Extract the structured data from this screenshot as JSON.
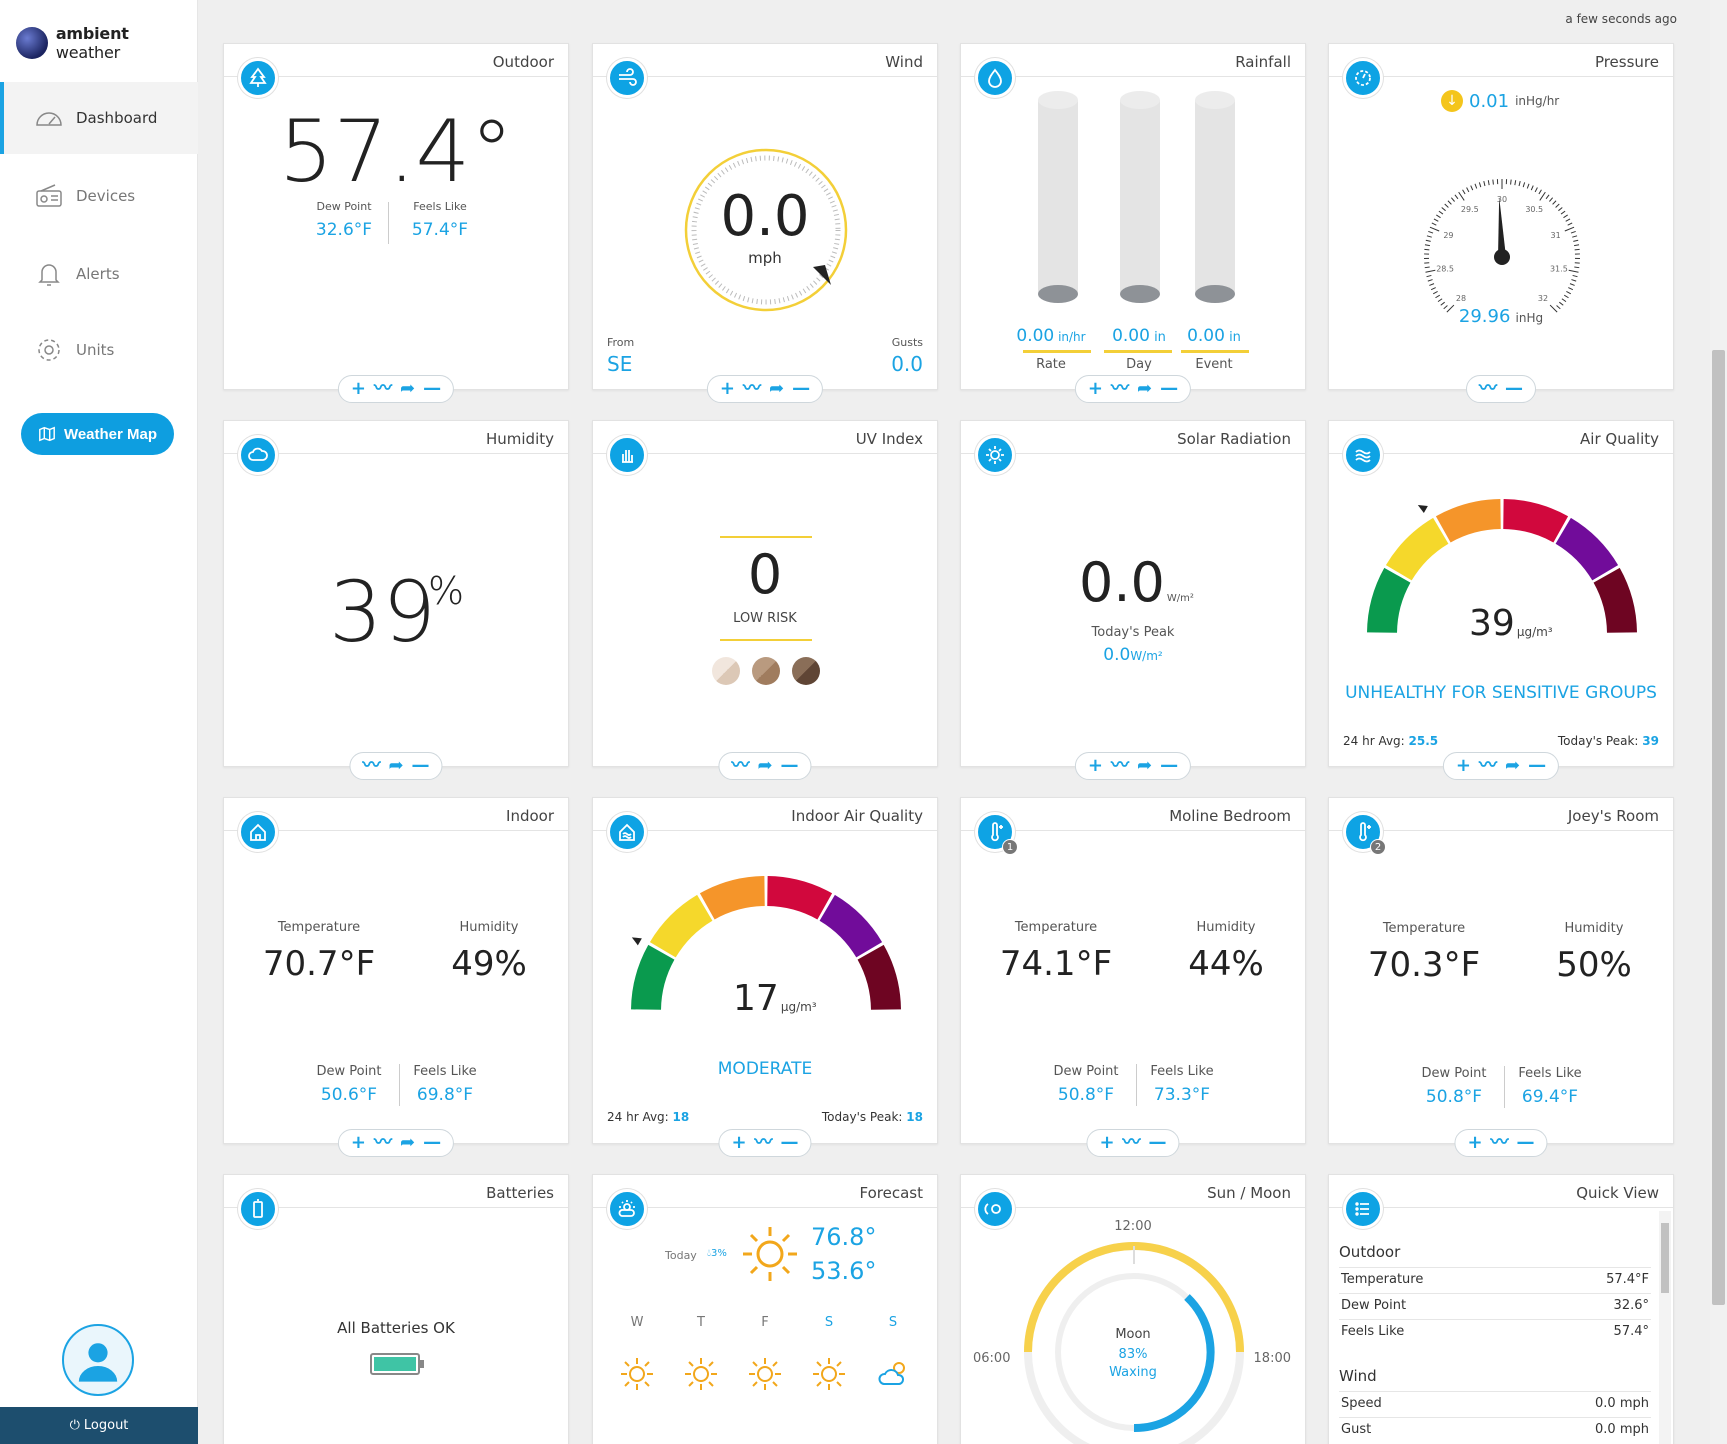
{
  "brand": {
    "name_bold": "ambient",
    "name_light": " weather"
  },
  "updated": "a few seconds ago",
  "nav": {
    "dashboard": "Dashboard",
    "devices": "Devices",
    "alerts": "Alerts",
    "units": "Units",
    "weather_map": "Weather Map",
    "logout": "Logout"
  },
  "outdoor": {
    "title": "Outdoor",
    "temp": "57.4°",
    "dew_label": "Dew Point",
    "dew": "32.6°F",
    "feels_label": "Feels Like",
    "feels": "57.4°F"
  },
  "wind": {
    "title": "Wind",
    "speed": "0.0",
    "unit": "mph",
    "from_label": "From",
    "from": "SE",
    "gust_label": "Gusts",
    "gust": "0.0"
  },
  "rainfall": {
    "title": "Rainfall",
    "rate": "0.00",
    "rate_unit": " in/hr",
    "day": "0.00",
    "day_unit": " in",
    "event": "0.00",
    "event_unit": " in",
    "rate_label": "Rate",
    "day_label": "Day",
    "event_label": "Event"
  },
  "pressure": {
    "title": "Pressure",
    "trend": "0.01",
    "trend_unit": "inHg/hr",
    "value": "29.96",
    "unit": "inHg",
    "ticks": [
      "28",
      "28.5",
      "29",
      "29.5",
      "30",
      "30.5",
      "31",
      "31.5",
      "32"
    ],
    "gauge_value": 29.96
  },
  "humidity": {
    "title": "Humidity",
    "value": "39",
    "unit": "%"
  },
  "uv": {
    "title": "UV Index",
    "value": "0",
    "risk": "LOW RISK"
  },
  "solar": {
    "title": "Solar Radiation",
    "value": "0.0",
    "unit": "W/m²",
    "peak_label": "Today's Peak",
    "peak": "0.0",
    "peak_unit": "W/m²"
  },
  "air": {
    "title": "Air Quality",
    "value": "39",
    "unit": "µg/m³",
    "status": "UNHEALTHY FOR SENSITIVE GROUPS",
    "avg_label": "24 hr Avg:",
    "avg": "25.5",
    "peak_label": "Today's Peak:",
    "peak": "39",
    "colors": [
      "#0a9a4e",
      "#f5d82b",
      "#f5952a",
      "#d1083d",
      "#710c9a",
      "#6e0522"
    ]
  },
  "indoor": {
    "title": "Indoor",
    "temp_label": "Temperature",
    "temp": "70.7°F",
    "hum_label": "Humidity",
    "hum": "49%",
    "dew_label": "Dew Point",
    "dew": "50.6°F",
    "feels_label": "Feels Like",
    "feels": "69.8°F"
  },
  "iaq": {
    "title": "Indoor Air Quality",
    "value": "17",
    "unit": "µg/m³",
    "status": "MODERATE",
    "avg_label": "24 hr Avg:",
    "avg": "18",
    "peak_label": "Today's Peak:",
    "peak": "18"
  },
  "moline": {
    "title": "Moline Bedroom",
    "badge": "1",
    "temp_label": "Temperature",
    "temp": "74.1°F",
    "hum_label": "Humidity",
    "hum": "44%",
    "dew_label": "Dew Point",
    "dew": "50.8°F",
    "feels_label": "Feels Like",
    "feels": "73.3°F"
  },
  "joey": {
    "title": "Joey's Room",
    "badge": "2",
    "temp_label": "Temperature",
    "temp": "70.3°F",
    "hum_label": "Humidity",
    "hum": "50%",
    "dew_label": "Dew Point",
    "dew": "50.8°F",
    "feels_label": "Feels Like",
    "feels": "69.4°F"
  },
  "batteries": {
    "title": "Batteries",
    "status": "All Batteries OK"
  },
  "forecast": {
    "title": "Forecast",
    "today_label": "Today",
    "rain": "3%",
    "high": "76.8°",
    "low": "53.6°",
    "days": [
      "W",
      "T",
      "F",
      "S",
      "S"
    ]
  },
  "sunmoon": {
    "title": "Sun / Moon",
    "t12": "12:00",
    "t06": "06:00",
    "t18": "18:00",
    "moon_label": "Moon",
    "pct": "83%",
    "phase": "Waxing"
  },
  "quick": {
    "title": "Quick View",
    "outdoor_h": "Outdoor",
    "rows": [
      [
        "Temperature",
        "57.4°F"
      ],
      [
        "Dew Point",
        "32.6°"
      ],
      [
        "Feels Like",
        "57.4°"
      ]
    ],
    "wind_h": "Wind",
    "wind_rows": [
      [
        "Speed",
        "0.0 mph"
      ],
      [
        "Gust",
        "0.0 mph"
      ]
    ]
  }
}
